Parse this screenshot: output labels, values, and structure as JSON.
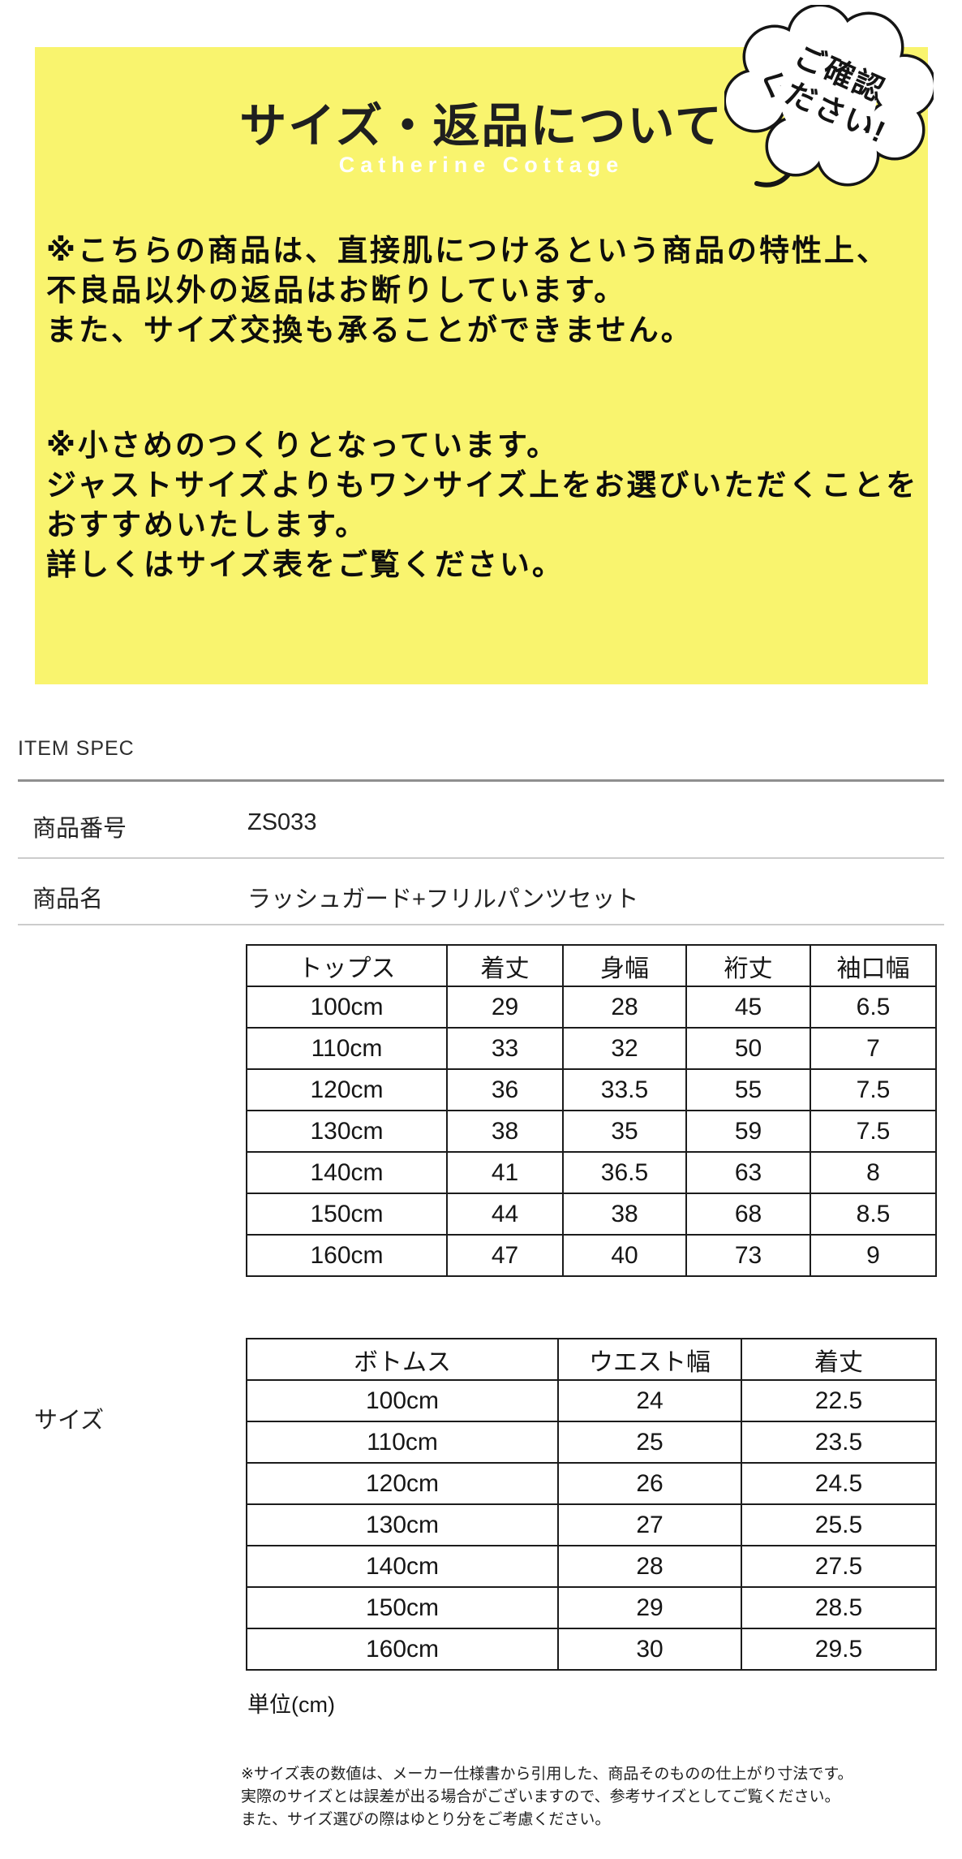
{
  "banner": {
    "bg_color": "#f9f46e",
    "title": "サイズ・返品について",
    "brand": "Catherine Cottage",
    "badge": {
      "line1": "ご確認",
      "line2": "ください!"
    },
    "notice_return": {
      "lines": [
        "※こちらの商品は、直接肌につけるという商品の特性上、",
        "不良品以外の返品はお断りしています。",
        "また、サイズ交換も承ることができません。"
      ]
    },
    "notice_sizing": {
      "lines": [
        "※小さめのつくりとなっています。",
        "ジャストサイズよりもワンサイズ上をお選びいただくことを",
        "おすすめいたします。",
        "詳しくはサイズ表をご覧ください。"
      ]
    }
  },
  "spec": {
    "heading": "ITEM SPEC",
    "item_number_label": "商品番号",
    "item_number_value": "ZS033",
    "item_name_label": "商品名",
    "item_name_value": "ラッシュガード+フリルパンツセット",
    "size_label": "サイズ",
    "unit_note": "単位(cm)",
    "footnote_lines": [
      "※サイズ表の数値は、メーカー仕様書から引用した、商品そのものの仕上がり寸法です。",
      "実際のサイズとは誤差が出る場合がございますので、参考サイズとしてご覧ください。",
      "また、サイズ選びの際はゆとり分をご考慮ください。"
    ]
  },
  "tops_table": {
    "headers": [
      "トップス",
      "着丈",
      "身幅",
      "裄丈",
      "袖口幅"
    ],
    "rows": [
      [
        "100cm",
        "29",
        "28",
        "45",
        "6.5"
      ],
      [
        "110cm",
        "33",
        "32",
        "50",
        "7"
      ],
      [
        "120cm",
        "36",
        "33.5",
        "55",
        "7.5"
      ],
      [
        "130cm",
        "38",
        "35",
        "59",
        "7.5"
      ],
      [
        "140cm",
        "41",
        "36.5",
        "63",
        "8"
      ],
      [
        "150cm",
        "44",
        "38",
        "68",
        "8.5"
      ],
      [
        "160cm",
        "47",
        "40",
        "73",
        "9"
      ]
    ]
  },
  "bottoms_table": {
    "headers": [
      "ボトムス",
      "ウエスト幅",
      "着丈"
    ],
    "rows": [
      [
        "100cm",
        "24",
        "22.5"
      ],
      [
        "110cm",
        "25",
        "23.5"
      ],
      [
        "120cm",
        "26",
        "24.5"
      ],
      [
        "130cm",
        "27",
        "25.5"
      ],
      [
        "140cm",
        "28",
        "27.5"
      ],
      [
        "150cm",
        "29",
        "28.5"
      ],
      [
        "160cm",
        "30",
        "29.5"
      ]
    ]
  }
}
